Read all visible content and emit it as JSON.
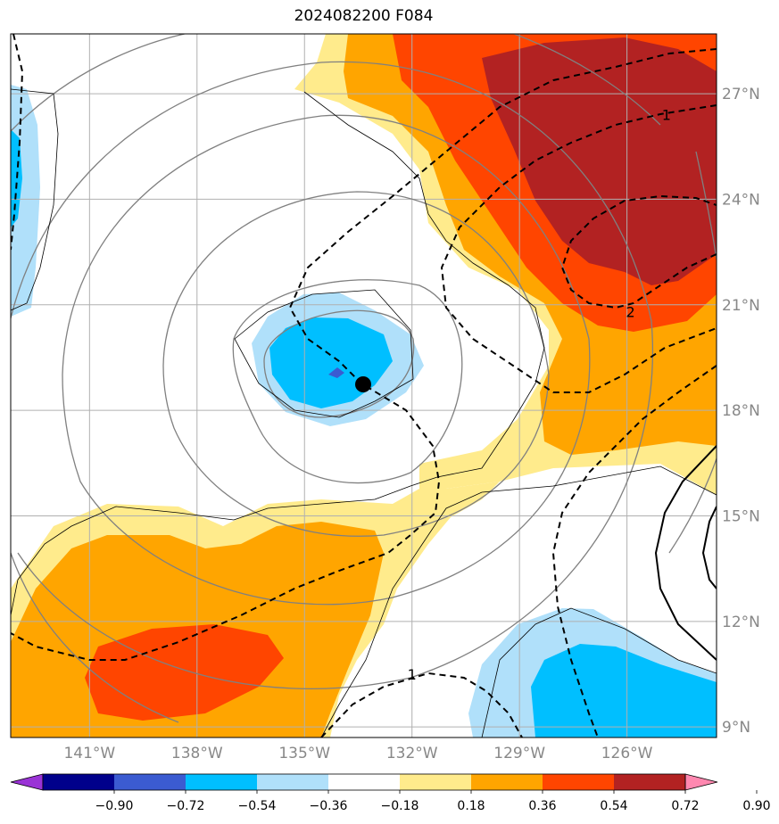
{
  "chart_data": {
    "type": "heatmap",
    "title": "2024082200 F084",
    "xlabel": "",
    "ylabel": "",
    "xlim": [
      -143.2,
      -123.5
    ],
    "ylim": [
      8.7,
      28.7
    ],
    "x_ticks": [
      -141,
      -138,
      -135,
      -132,
      -129,
      -126
    ],
    "x_tick_labels": [
      "141°W",
      "138°W",
      "135°W",
      "132°W",
      "129°W",
      "126°W"
    ],
    "y_ticks": [
      9,
      12,
      15,
      18,
      21,
      24,
      27
    ],
    "y_tick_labels": [
      "9°N",
      "12°N",
      "15°N",
      "18°N",
      "21°N",
      "24°N",
      "27°N"
    ],
    "grid": true,
    "colorbar": {
      "orientation": "horizontal",
      "extend": "both",
      "levels": [
        -0.9,
        -0.72,
        -0.54,
        -0.36,
        -0.18,
        0.18,
        0.36,
        0.54,
        0.72,
        0.9
      ],
      "level_labels": [
        "−0.90",
        "−0.72",
        "−0.54",
        "−0.36",
        "−0.18",
        "0.18",
        "0.36",
        "0.54",
        "0.72",
        "0.90"
      ],
      "colors": [
        "#9a33d6",
        "#00008b",
        "#3b5bd1",
        "#00bfff",
        "#b0e0fa",
        "#ffffff",
        "#ffeb8c",
        "#ffa500",
        "#ff4500",
        "#b22222",
        "#ff88b0"
      ]
    },
    "storm_center": {
      "lon": -133.3,
      "lat": 18.7
    },
    "contour_labels": [
      {
        "text": "1",
        "lon": -124.9,
        "lat": 26.4
      },
      {
        "text": "2",
        "lon": -125.9,
        "lat": 20.8
      },
      {
        "text": "1",
        "lon": -132.0,
        "lat": 10.5
      }
    ],
    "fill_regions": [
      {
        "level": "0.18 to 0.36",
        "color": "#ffeb8c",
        "area": "northeast band and southwest band"
      },
      {
        "level": "0.36 to 0.54",
        "color": "#ffa500",
        "area": "northeast and southwest"
      },
      {
        "level": "0.54 to 0.72",
        "color": "#ff4500",
        "area": "northeast and southwest core"
      },
      {
        "level": "0.72 to 0.90",
        "color": "#b22222",
        "area": "northeast core"
      },
      {
        "level": "-0.36 to -0.18",
        "color": "#b0e0fa",
        "area": "around storm center, west edge, southeast"
      },
      {
        "level": "-0.54 to -0.36",
        "color": "#00bfff",
        "area": "around storm center, west edge, southeast"
      },
      {
        "level": "-0.72 to -0.54",
        "color": "#3b5bd1",
        "area": "small spot near storm center"
      }
    ]
  }
}
